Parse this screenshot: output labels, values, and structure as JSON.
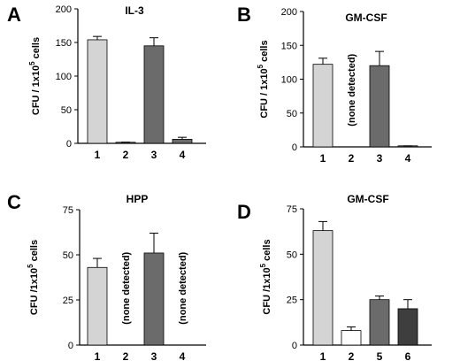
{
  "chart_data": [
    {
      "panel": "A",
      "title": "IL-3",
      "type": "bar",
      "ylabel_main": "CFU / 1x10",
      "ylabel_sup": "5",
      "ylabel_tail": " cells",
      "ylim": [
        0,
        200
      ],
      "yticks": [
        "0",
        "50",
        "100",
        "150",
        "200"
      ],
      "categories": [
        "1",
        "2",
        "3",
        "4"
      ],
      "values": [
        154,
        1,
        145,
        6
      ],
      "errors": [
        5,
        0.8,
        12,
        3
      ],
      "bar_colors": [
        "#d4d4d4",
        "#6b6b6b",
        "#6b6b6b",
        "#6b6b6b"
      ],
      "annotations": []
    },
    {
      "panel": "B",
      "title": "GM-CSF",
      "type": "bar",
      "ylabel_main": "CFU / 1x10",
      "ylabel_sup": "5",
      "ylabel_tail": " cells",
      "ylim": [
        0,
        200
      ],
      "yticks": [
        "0",
        "50",
        "100",
        "150",
        "200"
      ],
      "categories": [
        "1",
        "2",
        "3",
        "4"
      ],
      "values": [
        122,
        null,
        120,
        1
      ],
      "errors": [
        9,
        0,
        21,
        0.5
      ],
      "bar_colors": [
        "#d4d4d4",
        "#6b6b6b",
        "#6b6b6b",
        "#6b6b6b"
      ],
      "annotations": [
        {
          "category": "2",
          "text": "(none detected)"
        }
      ]
    },
    {
      "panel": "C",
      "title": "HPP",
      "type": "bar",
      "ylabel_main": "CFU /1x10",
      "ylabel_sup": "5",
      "ylabel_tail": " cells",
      "ylim": [
        0,
        75
      ],
      "yticks": [
        "0",
        "25",
        "50",
        "75"
      ],
      "categories": [
        "1",
        "2",
        "3",
        "4"
      ],
      "values": [
        43,
        null,
        51,
        null
      ],
      "errors": [
        5,
        0,
        11,
        0
      ],
      "bar_colors": [
        "#d4d4d4",
        "#6b6b6b",
        "#6b6b6b",
        "#6b6b6b"
      ],
      "annotations": [
        {
          "category": "2",
          "text": "(none detected)"
        },
        {
          "category": "4",
          "text": "(none detected)"
        }
      ]
    },
    {
      "panel": "D",
      "title": "GM-CSF",
      "type": "bar",
      "ylabel_main": "CFU /1x10",
      "ylabel_sup": "5",
      "ylabel_tail": " cells",
      "ylim": [
        0,
        75
      ],
      "yticks": [
        "0",
        "25",
        "50",
        "75"
      ],
      "categories": [
        "1",
        "2",
        "5",
        "6"
      ],
      "values": [
        63,
        8,
        25,
        20
      ],
      "errors": [
        5,
        2,
        2,
        5
      ],
      "bar_colors": [
        "#d4d4d4",
        "#ffffff",
        "#6b6b6b",
        "#3e3e3e"
      ],
      "annotations": []
    }
  ]
}
